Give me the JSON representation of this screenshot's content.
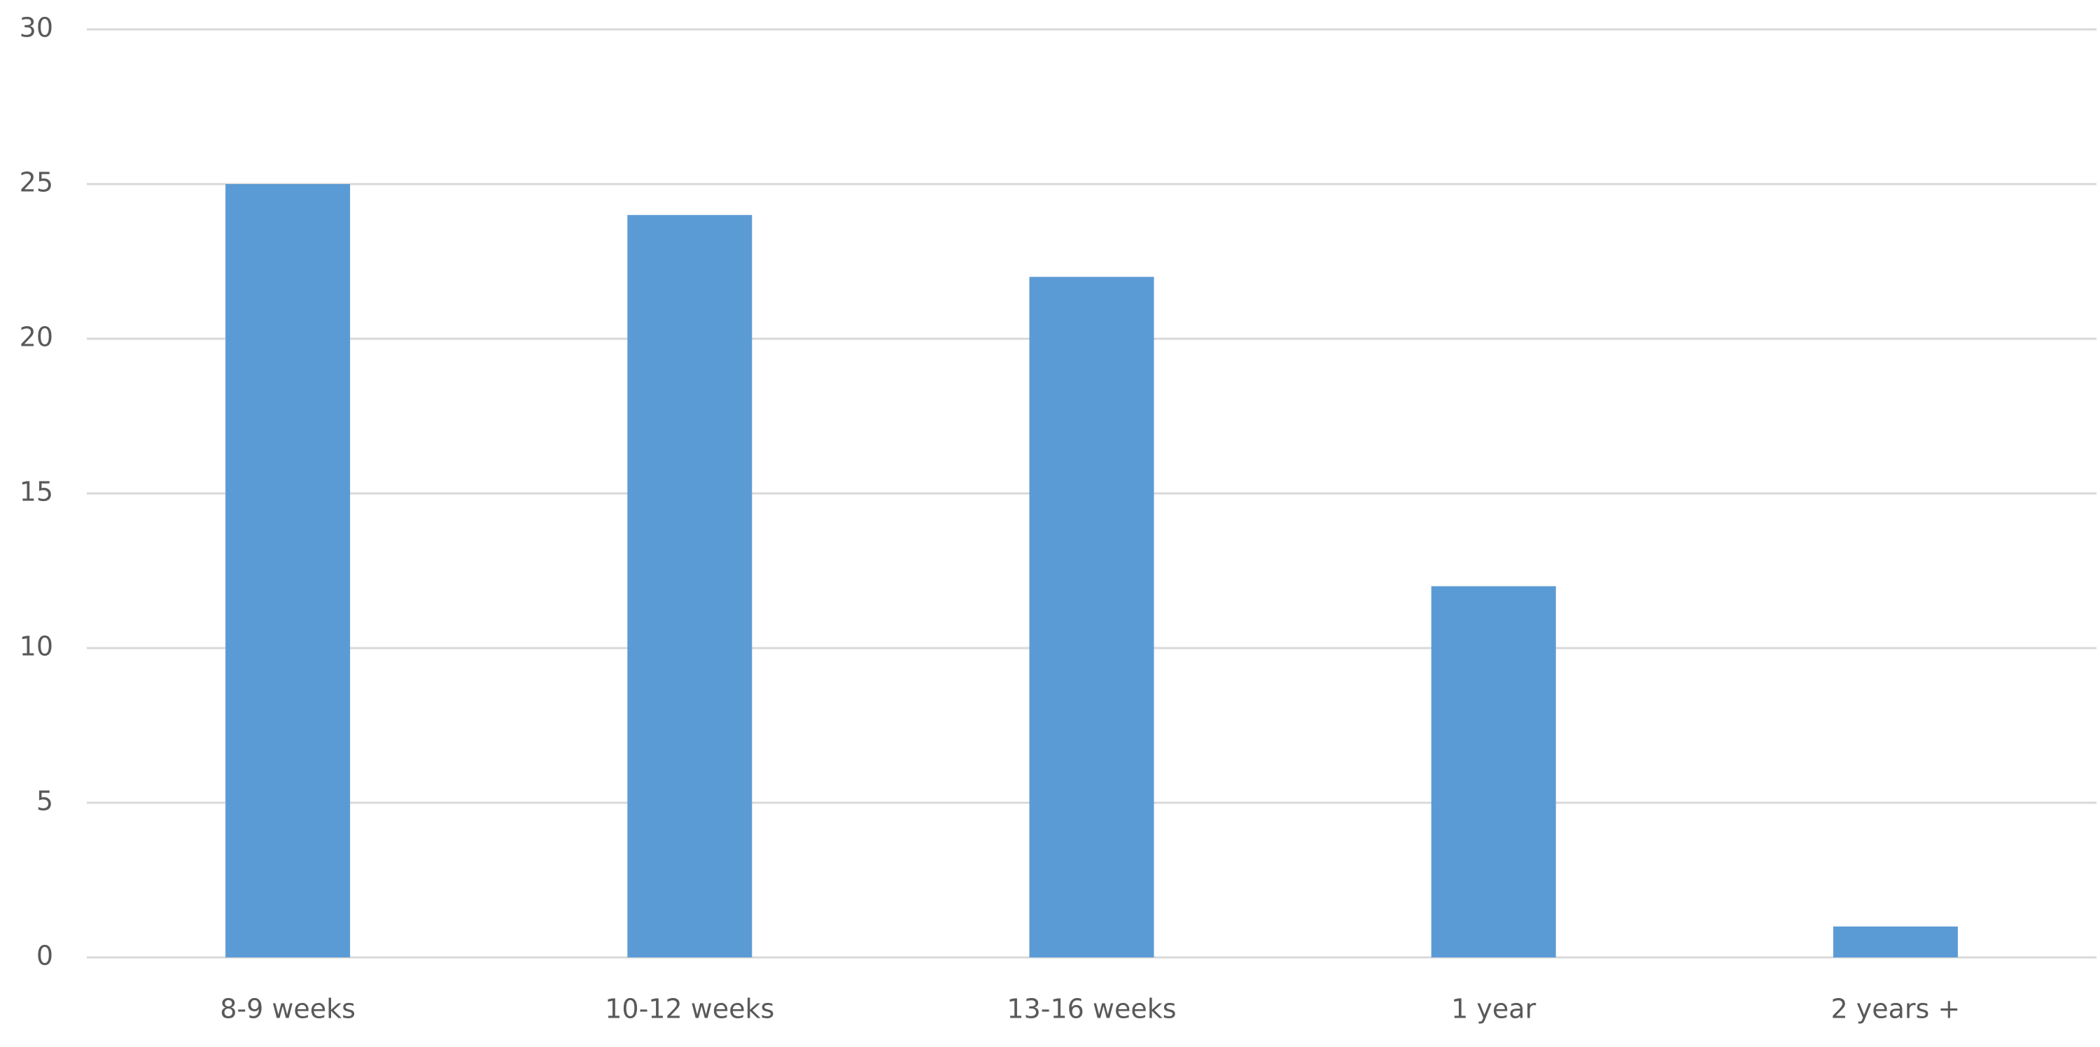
{
  "chart_data": {
    "type": "bar",
    "categories": [
      "8-9 weeks",
      "10-12 weeks",
      "13-16 weeks",
      "1 year",
      "2 years +"
    ],
    "values": [
      25,
      24,
      22,
      12,
      1
    ],
    "color": "#5b9bd5",
    "ylim": [
      0,
      30
    ],
    "yticks": [
      0,
      5,
      10,
      15,
      20,
      25,
      30
    ],
    "grid": true
  }
}
